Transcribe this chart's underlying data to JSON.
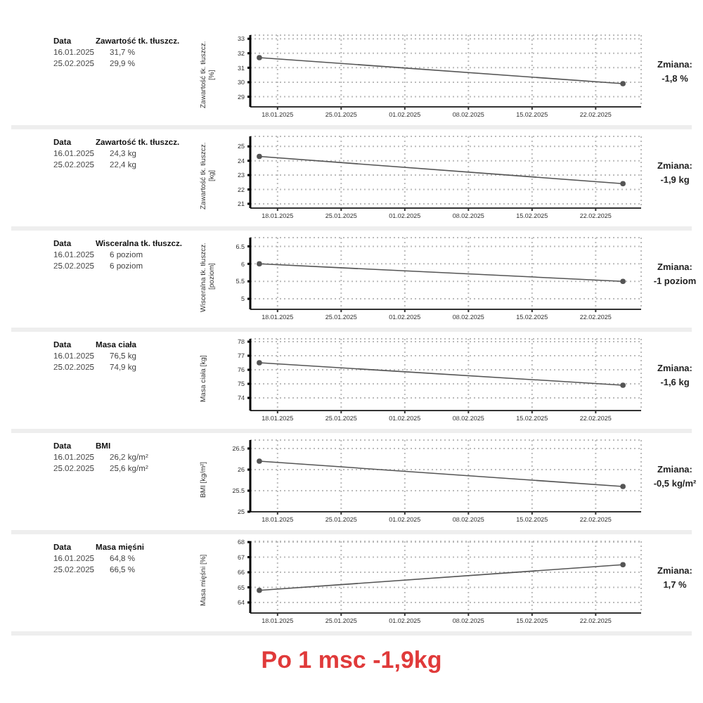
{
  "chart_data": [
    {
      "type": "line",
      "ylabel": "Zawartość tk. tłuszcz. [%]",
      "x": [
        "2025-01-16",
        "2025-02-25"
      ],
      "values": [
        31.7,
        29.9
      ],
      "color": "#555555",
      "marker": "circle",
      "line_style": "solid",
      "grid": true,
      "xlim": [
        "2025-01-15",
        "2025-02-27"
      ],
      "xticks": [
        {
          "value": "2025-01-18",
          "label": "18.01.2025"
        },
        {
          "value": "2025-01-25",
          "label": "25.01.2025"
        },
        {
          "value": "2025-02-01",
          "label": "01.02.2025"
        },
        {
          "value": "2025-02-08",
          "label": "08.02.2025"
        },
        {
          "value": "2025-02-15",
          "label": "15.02.2025"
        },
        {
          "value": "2025-02-22",
          "label": "22.02.2025"
        }
      ],
      "ylim": [
        28.3,
        33.25
      ],
      "yticks": [
        29,
        30,
        31,
        32,
        33
      ],
      "annotations": [
        "Data",
        "Zawartość tk. tłuszcz.",
        "16.01.2025",
        "31,7 %",
        "25.02.2025",
        "29,9 %",
        "Zmiana:",
        "-1,8 %"
      ]
    },
    {
      "type": "line",
      "ylabel": "Zawartość tk. tłuszcz. [kg]",
      "x": [
        "2025-01-16",
        "2025-02-25"
      ],
      "values": [
        24.3,
        22.4
      ],
      "color": "#555555",
      "marker": "circle",
      "line_style": "solid",
      "grid": true,
      "xlim": [
        "2025-01-15",
        "2025-02-27"
      ],
      "xticks": [
        {
          "value": "2025-01-18",
          "label": "18.01.2025"
        },
        {
          "value": "2025-01-25",
          "label": "25.01.2025"
        },
        {
          "value": "2025-02-01",
          "label": "01.02.2025"
        },
        {
          "value": "2025-02-08",
          "label": "08.02.2025"
        },
        {
          "value": "2025-02-15",
          "label": "15.02.2025"
        },
        {
          "value": "2025-02-22",
          "label": "22.02.2025"
        }
      ],
      "ylim": [
        20.7,
        25.7
      ],
      "yticks": [
        21,
        22,
        23,
        24,
        25
      ],
      "annotations": [
        "Data",
        "Zawartość tk. tłuszcz.",
        "16.01.2025",
        "24,3 kg",
        "25.02.2025",
        "22,4 kg",
        "Zmiana:",
        "-1,9 kg"
      ]
    },
    {
      "type": "line",
      "ylabel": "Wisceralna tk. tłuszcz. [poziom]",
      "x": [
        "2025-01-16",
        "2025-02-25"
      ],
      "values": [
        6.0,
        5.5
      ],
      "color": "#555555",
      "marker": "circle",
      "line_style": "solid",
      "grid": true,
      "xlim": [
        "2025-01-15",
        "2025-02-27"
      ],
      "xticks": [
        {
          "value": "2025-01-18",
          "label": "18.01.2025"
        },
        {
          "value": "2025-01-25",
          "label": "25.01.2025"
        },
        {
          "value": "2025-02-01",
          "label": "01.02.2025"
        },
        {
          "value": "2025-02-08",
          "label": "08.02.2025"
        },
        {
          "value": "2025-02-15",
          "label": "15.02.2025"
        },
        {
          "value": "2025-02-22",
          "label": "22.02.2025"
        }
      ],
      "ylim": [
        4.7,
        6.75
      ],
      "yticks": [
        5,
        5.5,
        6,
        6.5
      ],
      "annotations": [
        "Data",
        "Wisceralna tk. tłuszcz.",
        "16.01.2025",
        "6 poziom",
        "25.02.2025",
        "6 poziom",
        "Zmiana:",
        "-1 poziom"
      ]
    },
    {
      "type": "line",
      "ylabel": "Masa ciała [kg]",
      "x": [
        "2025-01-16",
        "2025-02-25"
      ],
      "values": [
        76.5,
        74.9
      ],
      "color": "#555555",
      "marker": "circle",
      "line_style": "solid",
      "grid": true,
      "xlim": [
        "2025-01-15",
        "2025-02-27"
      ],
      "xticks": [
        {
          "value": "2025-01-18",
          "label": "18.01.2025"
        },
        {
          "value": "2025-01-25",
          "label": "25.01.2025"
        },
        {
          "value": "2025-02-01",
          "label": "01.02.2025"
        },
        {
          "value": "2025-02-08",
          "label": "08.02.2025"
        },
        {
          "value": "2025-02-15",
          "label": "15.02.2025"
        },
        {
          "value": "2025-02-22",
          "label": "22.02.2025"
        }
      ],
      "ylim": [
        73.1,
        78.2
      ],
      "yticks": [
        74,
        75,
        76,
        77,
        78
      ],
      "annotations": [
        "Data",
        "Masa ciała",
        "16.01.2025",
        "76,5 kg",
        "25.02.2025",
        "74,9 kg",
        "Zmiana:",
        "-1,6 kg"
      ]
    },
    {
      "type": "line",
      "ylabel": "BMI [kg/m²]",
      "x": [
        "2025-01-16",
        "2025-02-25"
      ],
      "values": [
        26.2,
        25.6
      ],
      "color": "#555555",
      "marker": "circle",
      "line_style": "solid",
      "grid": true,
      "xlim": [
        "2025-01-15",
        "2025-02-27"
      ],
      "xticks": [
        {
          "value": "2025-01-18",
          "label": "18.01.2025"
        },
        {
          "value": "2025-01-25",
          "label": "25.01.2025"
        },
        {
          "value": "2025-02-01",
          "label": "01.02.2025"
        },
        {
          "value": "2025-02-08",
          "label": "08.02.2025"
        },
        {
          "value": "2025-02-15",
          "label": "15.02.2025"
        },
        {
          "value": "2025-02-22",
          "label": "22.02.2025"
        }
      ],
      "ylim": [
        25,
        26.7
      ],
      "yticks": [
        25,
        25.5,
        26,
        26.5
      ],
      "annotations": [
        "Data",
        "BMI",
        "16.01.2025",
        "26,2 kg/m²",
        "25.02.2025",
        "25,6 kg/m²",
        "Zmiana:",
        "-0,5 kg/m²"
      ]
    },
    {
      "type": "line",
      "ylabel": "Masa mięśni [%]",
      "x": [
        "2025-01-16",
        "2025-02-25"
      ],
      "values": [
        64.8,
        66.5
      ],
      "color": "#555555",
      "marker": "circle",
      "line_style": "solid",
      "grid": true,
      "xlim": [
        "2025-01-15",
        "2025-02-27"
      ],
      "xticks": [
        {
          "value": "2025-01-18",
          "label": "18.01.2025"
        },
        {
          "value": "2025-01-25",
          "label": "25.01.2025"
        },
        {
          "value": "2025-02-01",
          "label": "01.02.2025"
        },
        {
          "value": "2025-02-08",
          "label": "08.02.2025"
        },
        {
          "value": "2025-02-15",
          "label": "15.02.2025"
        },
        {
          "value": "2025-02-22",
          "label": "22.02.2025"
        }
      ],
      "ylim": [
        63.3,
        68.05
      ],
      "yticks": [
        64,
        65,
        66,
        67,
        68
      ],
      "annotations": [
        "Data",
        "Masa mięśni",
        "16.01.2025",
        "64,8 %",
        "25.02.2025",
        "66,5 %",
        "Zmiana:",
        "1,7 %",
        "Po 1 msc -1,9kg"
      ]
    }
  ]
}
